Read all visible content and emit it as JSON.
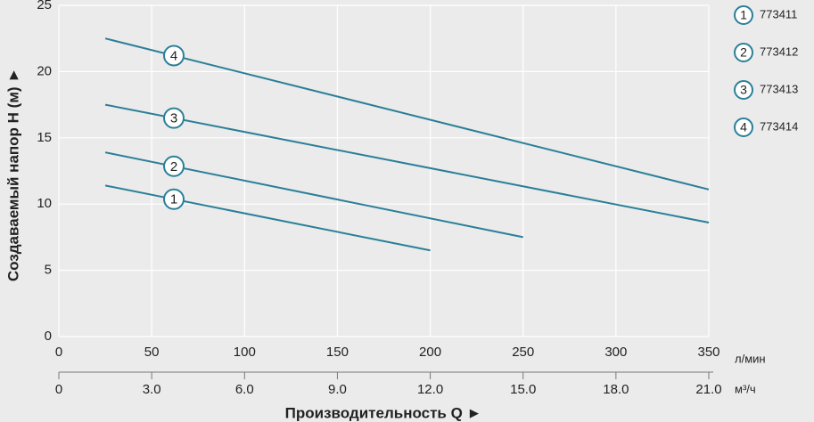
{
  "chart_data": {
    "type": "line",
    "y_label": "Создаваемый напор H (м) ►",
    "x_label": "Производительность Q  ►",
    "x_unit": "л/мин",
    "x2_unit": "м³/ч",
    "xlim": [
      0,
      350
    ],
    "xticks": [
      0,
      50,
      100,
      150,
      200,
      250,
      300,
      350
    ],
    "x2lim": [
      0,
      21
    ],
    "x2ticks": [
      0,
      {
        "value": 3,
        "label": "3.0"
      },
      {
        "value": 6,
        "label": "6.0"
      },
      {
        "value": 9,
        "label": "9.0"
      },
      {
        "value": 12,
        "label": "12.0"
      },
      {
        "value": 15,
        "label": "15.0"
      },
      {
        "value": 18,
        "label": "18.0"
      },
      {
        "value": 21,
        "label": "21.0"
      }
    ],
    "ylim": [
      0,
      25
    ],
    "yticks": [
      0,
      5,
      10,
      15,
      20,
      25
    ],
    "grid": true,
    "series": [
      {
        "name": "773411",
        "marker_label": "1",
        "color": "#2b7f98",
        "x": [
          25,
          200
        ],
        "values": [
          11.4,
          6.5
        ]
      },
      {
        "name": "773412",
        "marker_label": "2",
        "color": "#2b7f98",
        "x": [
          25,
          250
        ],
        "values": [
          13.9,
          7.5
        ]
      },
      {
        "name": "773413",
        "marker_label": "3",
        "color": "#2b7f98",
        "x": [
          25,
          350
        ],
        "values": [
          17.5,
          8.6
        ]
      },
      {
        "name": "773414",
        "marker_label": "4",
        "color": "#2b7f98",
        "x": [
          25,
          350
        ],
        "values": [
          22.5,
          11.1
        ]
      }
    ]
  }
}
